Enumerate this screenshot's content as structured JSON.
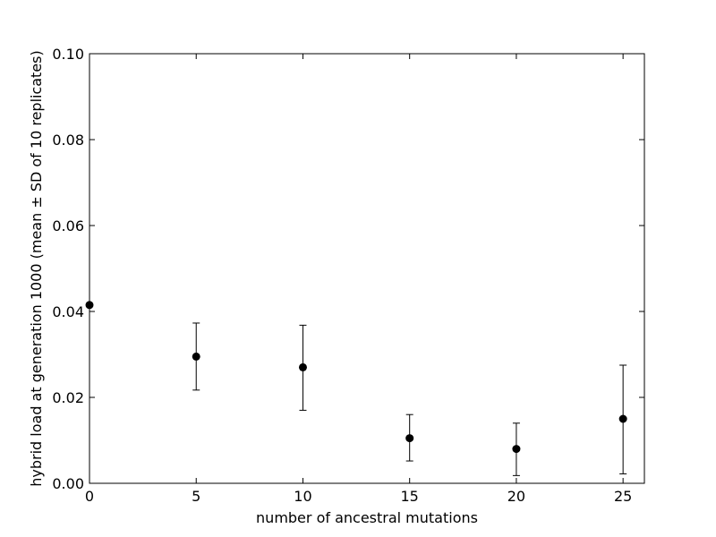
{
  "chart_data": {
    "type": "scatter",
    "title": "",
    "xlabel": "number of ancestral mutations",
    "ylabel": "hybrid load at generation 1000 (mean ± SD of 10 replicates)",
    "xlim": [
      0,
      26
    ],
    "ylim": [
      0.0,
      0.1
    ],
    "xticks": [
      0,
      5,
      10,
      15,
      20,
      25
    ],
    "xtick_labels": [
      "0",
      "5",
      "10",
      "15",
      "20",
      "25"
    ],
    "yticks": [
      0.0,
      0.02,
      0.04,
      0.06,
      0.08,
      0.1
    ],
    "ytick_labels": [
      "0.00",
      "0.02",
      "0.04",
      "0.06",
      "0.08",
      "0.10"
    ],
    "grid": false,
    "legend": "none",
    "marker_color": "#000000",
    "series": [
      {
        "x": [
          0,
          5,
          10,
          15,
          20,
          25
        ],
        "y": [
          0.0415,
          0.0295,
          0.027,
          0.0105,
          0.008,
          0.015
        ],
        "err_low": [
          0.0415,
          0.0217,
          0.017,
          0.0052,
          0.0018,
          0.0022
        ],
        "err_high": [
          0.0415,
          0.0373,
          0.0368,
          0.016,
          0.014,
          0.0275
        ]
      }
    ]
  }
}
